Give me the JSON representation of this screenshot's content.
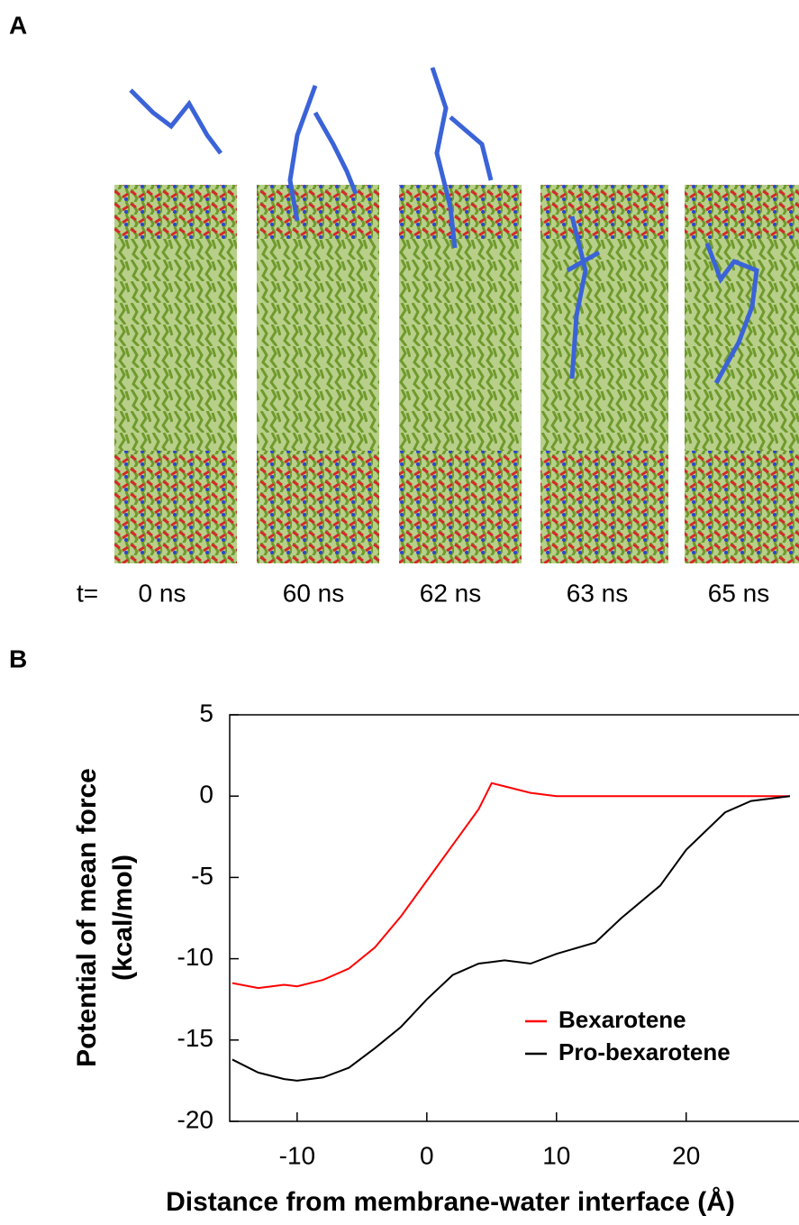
{
  "panel_a": {
    "label": "A",
    "time_prefix": "t=",
    "times": [
      "0 ns",
      "60 ns",
      "62 ns",
      "63 ns",
      "65 ns"
    ]
  },
  "panel_b": {
    "label": "B"
  },
  "chart_data": {
    "type": "line",
    "xlabel": "Distance from membrane-water interface (Å)",
    "ylabel": [
      "Potential of mean force",
      "(kcal/mol)"
    ],
    "x": [
      -15,
      -13,
      -11,
      -10,
      -8,
      -6,
      -4,
      -2,
      0,
      2,
      4,
      5,
      6,
      8,
      10,
      13,
      15,
      18,
      20,
      23,
      25,
      28
    ],
    "series": [
      {
        "name": "Bexarotene",
        "color": "#ff0000",
        "values": [
          -11.5,
          -11.8,
          -11.6,
          -11.7,
          -11.3,
          -10.6,
          -9.3,
          -7.4,
          -5.2,
          -3.0,
          -0.8,
          0.8,
          0.6,
          0.2,
          0,
          0,
          0,
          0,
          0,
          0,
          0,
          0
        ]
      },
      {
        "name": "Pro-bexarotene",
        "color": "#000000",
        "values": [
          -16.2,
          -17.0,
          -17.4,
          -17.5,
          -17.3,
          -16.7,
          -15.5,
          -14.2,
          -12.5,
          -11,
          -10.3,
          -10.2,
          -10.1,
          -10.3,
          -9.7,
          -9.0,
          -7.5,
          -5.5,
          -3.3,
          -1.0,
          -0.3,
          0
        ]
      }
    ],
    "xlim": [
      -15.2,
      28.7
    ],
    "xticks": [
      -10,
      0,
      10,
      20
    ],
    "ylim": [
      -20,
      5
    ],
    "yticks": [
      -20,
      -15,
      -10,
      -5,
      0,
      5
    ],
    "legend": "lower right"
  }
}
